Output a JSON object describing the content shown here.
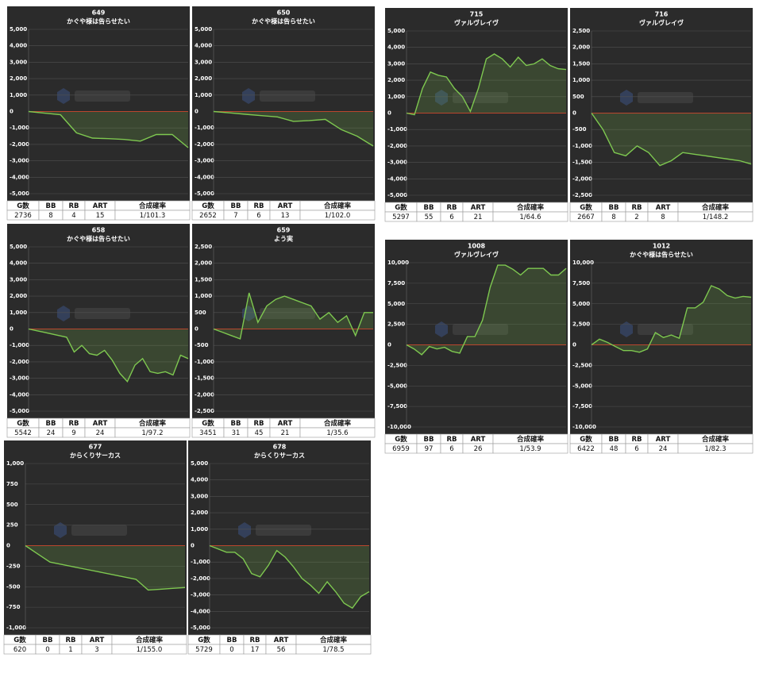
{
  "chart_data": [
    {
      "type": "line",
      "title": "649",
      "subtitle": "かぐや様は告らせたい",
      "color": "#7ec850",
      "zero_color": "#c0392b",
      "values": [
        0,
        -100,
        -200,
        -1300,
        -1620,
        -1650,
        -1700,
        -1800,
        -1400,
        -1400,
        -2200
      ],
      "ylim": [
        -5000,
        5000
      ],
      "yticks": [
        {
          "value": 5000,
          "label": "5,000"
        },
        {
          "value": 4000,
          "label": "4,000"
        },
        {
          "value": 3000,
          "label": "3,000"
        },
        {
          "value": 2000,
          "label": "2,000"
        },
        {
          "value": 1000,
          "label": "1,000"
        },
        0,
        {
          "value": -1000,
          "label": "-1,000"
        },
        {
          "value": -2000,
          "label": "-2,000"
        },
        {
          "value": -3000,
          "label": "-3,000"
        },
        {
          "value": -4000,
          "label": "-4,000"
        },
        {
          "value": -5000,
          "label": "-5,000"
        }
      ],
      "table": {
        "header": [
          "G数",
          "BB",
          "RB",
          "ART",
          "合成確率"
        ],
        "row": [
          2736,
          8,
          4,
          15,
          "1/101.3"
        ]
      }
    },
    {
      "type": "line",
      "title": "650",
      "subtitle": "かぐや様は告らせたい",
      "color": "#7ec850",
      "zero_color": "#c0392b",
      "values": [
        0,
        -80,
        -170,
        -250,
        -330,
        -600,
        -550,
        -480,
        -1100,
        -1500,
        -2100
      ],
      "ylim": [
        -5000,
        5000
      ],
      "yticks": [
        {
          "value": 5000,
          "label": "5,000"
        },
        {
          "value": 4000,
          "label": "4,000"
        },
        {
          "value": 3000,
          "label": "3,000"
        },
        {
          "value": 2000,
          "label": "2,000"
        },
        {
          "value": 1000,
          "label": "1,000"
        },
        0,
        {
          "value": -1000,
          "label": "-1,000"
        },
        {
          "value": -2000,
          "label": "-2,000"
        },
        {
          "value": -3000,
          "label": "-3,000"
        },
        {
          "value": -4000,
          "label": "-4,000"
        },
        {
          "value": -5000,
          "label": "-5,000"
        }
      ],
      "table": {
        "header": [
          "G数",
          "BB",
          "RB",
          "ART",
          "合成確率"
        ],
        "row": [
          2652,
          7,
          6,
          13,
          "1/102.0"
        ]
      }
    },
    {
      "type": "line",
      "title": "715",
      "subtitle": "ヴァルヴレイヴ",
      "color": "#7ec850",
      "zero_color": "#c0392b",
      "values": [
        0,
        -100,
        1500,
        2500,
        2300,
        2200,
        1500,
        1000,
        100,
        1500,
        3300,
        3600,
        3300,
        2800,
        3400,
        2900,
        3000,
        3300,
        2900,
        2700,
        2650
      ],
      "ylim": [
        -5000,
        5000
      ],
      "yticks": [
        {
          "value": 5000,
          "label": "5,000"
        },
        {
          "value": 4000,
          "label": "4,000"
        },
        {
          "value": 3000,
          "label": "3,000"
        },
        {
          "value": 2000,
          "label": "2,000"
        },
        {
          "value": 1000,
          "label": "1,000"
        },
        0,
        {
          "value": -1000,
          "label": "-1,000"
        },
        {
          "value": -2000,
          "label": "-2,000"
        },
        {
          "value": -3000,
          "label": "-3,000"
        },
        {
          "value": -4000,
          "label": "-4,000"
        },
        {
          "value": -5000,
          "label": "-5,000"
        }
      ],
      "table": {
        "header": [
          "G数",
          "BB",
          "RB",
          "ART",
          "合成確率"
        ],
        "row": [
          5297,
          55,
          6,
          21,
          "1/64.6"
        ]
      }
    },
    {
      "type": "line",
      "title": "716",
      "subtitle": "ヴァルヴレイヴ",
      "color": "#7ec850",
      "zero_color": "#c0392b",
      "values": [
        0,
        -500,
        -1200,
        -1300,
        -1000,
        -1200,
        -1600,
        -1450,
        -1200,
        -1250,
        -1300,
        -1350,
        -1400,
        -1450,
        -1550
      ],
      "ylim": [
        -2500,
        2500
      ],
      "yticks": [
        {
          "value": 2500,
          "label": "2,500"
        },
        {
          "value": 2000,
          "label": "2,000"
        },
        {
          "value": 1500,
          "label": "1,500"
        },
        {
          "value": 1000,
          "label": "1,000"
        },
        500,
        0,
        -500,
        {
          "value": -1000,
          "label": "-1,000"
        },
        {
          "value": -1500,
          "label": "-1,500"
        },
        {
          "value": -2000,
          "label": "-2,000"
        },
        {
          "value": -2500,
          "label": "-2,500"
        }
      ],
      "table": {
        "header": [
          "G数",
          "BB",
          "RB",
          "ART",
          "合成確率"
        ],
        "row": [
          2667,
          8,
          2,
          8,
          "1/148.2"
        ]
      }
    },
    {
      "type": "line",
      "title": "658",
      "subtitle": "かぐや様は告らせたい",
      "color": "#7ec850",
      "zero_color": "#c0392b",
      "values": [
        0,
        -100,
        -200,
        -300,
        -400,
        -500,
        -1400,
        -1000,
        -1500,
        -1600,
        -1300,
        -1900,
        -2700,
        -3200,
        -2200,
        -1800,
        -2600,
        -2700,
        -2600,
        -2800,
        -1600,
        -1800
      ],
      "ylim": [
        -5000,
        5000
      ],
      "yticks": [
        {
          "value": 5000,
          "label": "5,000"
        },
        {
          "value": 4000,
          "label": "4,000"
        },
        {
          "value": 3000,
          "label": "3,000"
        },
        {
          "value": 2000,
          "label": "2,000"
        },
        {
          "value": 1000,
          "label": "1,000"
        },
        0,
        {
          "value": -1000,
          "label": "-1,000"
        },
        {
          "value": -2000,
          "label": "-2,000"
        },
        {
          "value": -3000,
          "label": "-3,000"
        },
        {
          "value": -4000,
          "label": "-4,000"
        },
        {
          "value": -5000,
          "label": "-5,000"
        }
      ],
      "table": {
        "header": [
          "G数",
          "BB",
          "RB",
          "ART",
          "合成確率"
        ],
        "row": [
          5542,
          24,
          9,
          24,
          "1/97.2"
        ]
      }
    },
    {
      "type": "line",
      "title": "659",
      "subtitle": "よう実",
      "color": "#7ec850",
      "zero_color": "#c0392b",
      "values": [
        0,
        -100,
        -200,
        -300,
        1100,
        200,
        700,
        900,
        1000,
        900,
        800,
        700,
        300,
        500,
        200,
        400,
        -200,
        500,
        500
      ],
      "ylim": [
        -2500,
        2500
      ],
      "yticks": [
        {
          "value": 2500,
          "label": "2,500"
        },
        {
          "value": 2000,
          "label": "2,000"
        },
        {
          "value": 1500,
          "label": "1,500"
        },
        {
          "value": 1000,
          "label": "1,000"
        },
        500,
        0,
        -500,
        {
          "value": -1000,
          "label": "-1,000"
        },
        {
          "value": -1500,
          "label": "-1,500"
        },
        {
          "value": -2000,
          "label": "-2,000"
        },
        {
          "value": -2500,
          "label": "-2,500"
        }
      ],
      "table": {
        "header": [
          "G数",
          "BB",
          "RB",
          "ART",
          "合成確率"
        ],
        "row": [
          3451,
          31,
          45,
          21,
          "1/35.6"
        ]
      }
    },
    {
      "type": "line",
      "title": "1008",
      "subtitle": "ヴァルヴレイヴ",
      "color": "#7ec850",
      "zero_color": "#c0392b",
      "values": [
        0,
        -500,
        -1200,
        -200,
        -500,
        -300,
        -800,
        -1000,
        1000,
        1000,
        3000,
        7000,
        9700,
        9700,
        9200,
        8500,
        9300,
        9300,
        9300,
        8500,
        8500,
        9300
      ],
      "ylim": [
        -10000,
        10000
      ],
      "yticks": [
        {
          "value": 10000,
          "label": "10,000"
        },
        {
          "value": 7500,
          "label": "7,500"
        },
        {
          "value": 5000,
          "label": "5,000"
        },
        {
          "value": 2500,
          "label": "2,500"
        },
        0,
        {
          "value": -2500,
          "label": "-2,500"
        },
        {
          "value": -5000,
          "label": "-5,000"
        },
        {
          "value": -7500,
          "label": "-7,500"
        },
        {
          "value": -10000,
          "label": "-10,000"
        }
      ],
      "table": {
        "header": [
          "G数",
          "BB",
          "RB",
          "ART",
          "合成確率"
        ],
        "row": [
          6959,
          97,
          6,
          26,
          "1/53.9"
        ]
      }
    },
    {
      "type": "line",
      "title": "1012",
      "subtitle": "かぐや様は告らせたい",
      "color": "#7ec850",
      "zero_color": "#c0392b",
      "values": [
        0,
        700,
        300,
        -200,
        -700,
        -700,
        -900,
        -500,
        1500,
        900,
        1200,
        800,
        4500,
        4500,
        5200,
        7200,
        6800,
        6000,
        5700,
        5900,
        5800
      ],
      "ylim": [
        -10000,
        10000
      ],
      "yticks": [
        {
          "value": 10000,
          "label": "10,000"
        },
        {
          "value": 7500,
          "label": "7,500"
        },
        {
          "value": 5000,
          "label": "5,000"
        },
        {
          "value": 2500,
          "label": "2,500"
        },
        0,
        {
          "value": -2500,
          "label": "-2,500"
        },
        {
          "value": -5000,
          "label": "-5,000"
        },
        {
          "value": -7500,
          "label": "-7,500"
        },
        {
          "value": -10000,
          "label": "-10,000"
        }
      ],
      "table": {
        "header": [
          "G数",
          "BB",
          "RB",
          "ART",
          "合成確率"
        ],
        "row": [
          6422,
          48,
          6,
          24,
          "1/82.3"
        ]
      }
    },
    {
      "type": "line",
      "title": "677",
      "subtitle": "からくりサーカス",
      "color": "#7ec850",
      "zero_color": "#c0392b",
      "values": [
        0,
        -100,
        -200,
        -230,
        -260,
        -290,
        -320,
        -350,
        -380,
        -410,
        -540,
        -530,
        -520,
        -510
      ],
      "ylim": [
        -1000,
        1000
      ],
      "yticks": [
        {
          "value": 1000,
          "label": "1,000"
        },
        750,
        500,
        250,
        0,
        -250,
        -500,
        -750,
        {
          "value": -1000,
          "label": "-1,000"
        }
      ],
      "table": {
        "header": [
          "G数",
          "BB",
          "RB",
          "ART",
          "合成確率"
        ],
        "row": [
          620,
          0,
          1,
          3,
          "1/155.0"
        ]
      }
    },
    {
      "type": "line",
      "title": "678",
      "subtitle": "からくりサーカス",
      "color": "#7ec850",
      "zero_color": "#c0392b",
      "values": [
        0,
        -200,
        -400,
        -400,
        -800,
        -1700,
        -1900,
        -1200,
        -300,
        -700,
        -1300,
        -2000,
        -2400,
        -2900,
        -2200,
        -2800,
        -3500,
        -3800,
        -3100,
        -2800
      ],
      "ylim": [
        -5000,
        5000
      ],
      "yticks": [
        {
          "value": 5000,
          "label": "5,000"
        },
        {
          "value": 4000,
          "label": "4,000"
        },
        {
          "value": 3000,
          "label": "3,000"
        },
        {
          "value": 2000,
          "label": "2,000"
        },
        {
          "value": 1000,
          "label": "1,000"
        },
        0,
        {
          "value": -1000,
          "label": "-1,000"
        },
        {
          "value": -2000,
          "label": "-2,000"
        },
        {
          "value": -3000,
          "label": "-3,000"
        },
        {
          "value": -4000,
          "label": "-4,000"
        },
        {
          "value": -5000,
          "label": "-5,000"
        }
      ],
      "table": {
        "header": [
          "G数",
          "BB",
          "RB",
          "ART",
          "合成確率"
        ],
        "row": [
          5729,
          0,
          17,
          56,
          "1/78.5"
        ]
      }
    }
  ]
}
